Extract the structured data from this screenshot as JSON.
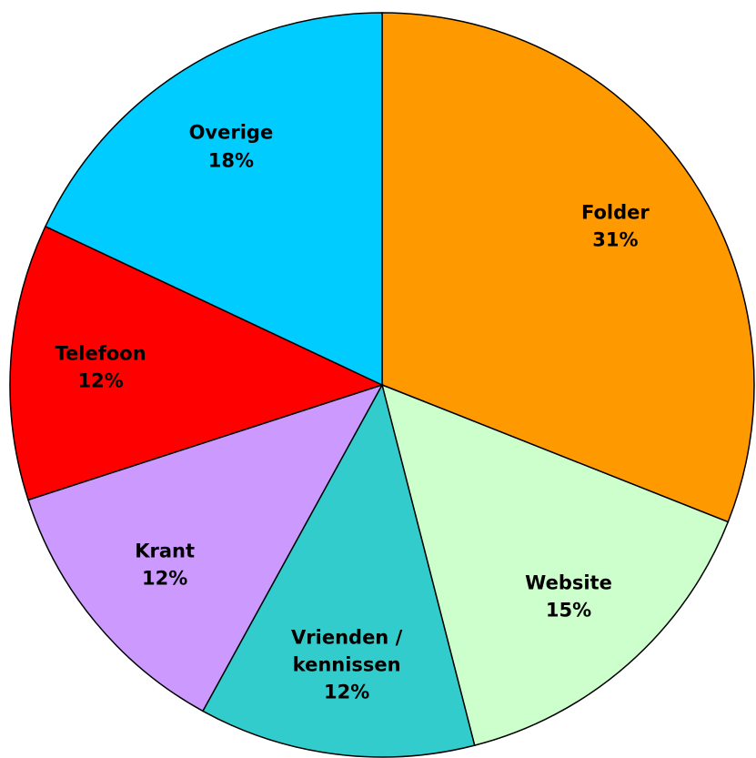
{
  "chart_data": {
    "type": "pie",
    "categories": [
      "Folder",
      "Website",
      "Vrienden / kennissen",
      "Krant",
      "Telefoon",
      "Overige"
    ],
    "values": [
      31,
      15,
      12,
      12,
      12,
      18
    ],
    "value_labels": [
      "31%",
      "15%",
      "12%",
      "12%",
      "12%",
      "18%"
    ],
    "colors": [
      "#ff9900",
      "#ccffcc",
      "#33cccc",
      "#cc99ff",
      "#ff0000",
      "#00ccff"
    ],
    "start_angle": 0,
    "direction": "clockwise"
  }
}
